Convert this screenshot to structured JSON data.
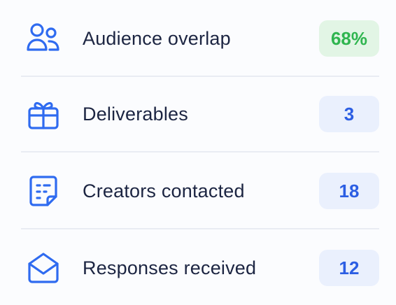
{
  "rows": [
    {
      "label": "Audience overlap",
      "value": "68%"
    },
    {
      "label": "Deliverables",
      "value": "3"
    },
    {
      "label": "Creators contacted",
      "value": "18"
    },
    {
      "label": "Responses received",
      "value": "12"
    }
  ]
}
